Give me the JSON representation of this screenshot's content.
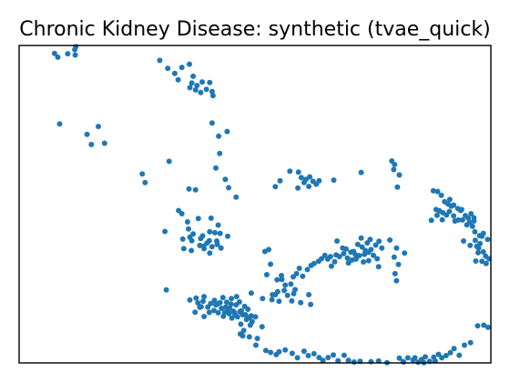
{
  "chart_data": {
    "type": "scatter",
    "title": "Chronic Kidney Disease: synthetic (tvae_quick)",
    "xlabel": "",
    "ylabel": "",
    "xlim": [
      0,
      100
    ],
    "ylim": [
      0,
      100
    ],
    "grid": false,
    "axis_ticks": false,
    "marker_color": "#1f77b4",
    "series": [
      {
        "points": [
          [
            7.5,
            97.5
          ],
          [
            8.2,
            96.3
          ],
          [
            10.3,
            97.4
          ],
          [
            11.8,
            98.7
          ],
          [
            12.0,
            99.6
          ],
          [
            11.9,
            97.0
          ],
          [
            29.8,
            95.3
          ],
          [
            31.5,
            92.8
          ],
          [
            33.0,
            91.2
          ],
          [
            33.7,
            89.2
          ],
          [
            34.5,
            93.1
          ],
          [
            36.1,
            94.1
          ],
          [
            36.9,
            90.3
          ],
          [
            36.6,
            88.2
          ],
          [
            37.7,
            87.4
          ],
          [
            38.8,
            88.5
          ],
          [
            37.4,
            86.0
          ],
          [
            38.5,
            85.2
          ],
          [
            39.7,
            86.2
          ],
          [
            40.9,
            85.5
          ],
          [
            40.4,
            88.3
          ],
          [
            41.1,
            84.2
          ],
          [
            36.2,
            86.7
          ],
          [
            8.6,
            75.3
          ],
          [
            14.4,
            72.0
          ],
          [
            15.3,
            68.8
          ],
          [
            16.8,
            74.5
          ],
          [
            18.1,
            69.2
          ],
          [
            40.9,
            75.6
          ],
          [
            42.3,
            71.4
          ],
          [
            44.1,
            72.9
          ],
          [
            42.5,
            66.0
          ],
          [
            41.7,
            61.4
          ],
          [
            43.7,
            57.8
          ],
          [
            44.4,
            55.2
          ],
          [
            46.0,
            52.2
          ],
          [
            26.1,
            59.5
          ],
          [
            26.7,
            56.8
          ],
          [
            31.8,
            63.5
          ],
          [
            36.0,
            54.8
          ],
          [
            37.4,
            54.5
          ],
          [
            33.8,
            48.0
          ],
          [
            34.5,
            47.0
          ],
          [
            35.7,
            44.4
          ],
          [
            35.9,
            42.2
          ],
          [
            36.6,
            38.5
          ],
          [
            38.3,
            37.0
          ],
          [
            36.2,
            39.6
          ],
          [
            36.9,
            40.6
          ],
          [
            39.2,
            36.0
          ],
          [
            40.3,
            38.5
          ],
          [
            38.0,
            45.5
          ],
          [
            39.1,
            36.8
          ],
          [
            39.8,
            37.7
          ],
          [
            34.7,
            39.0
          ],
          [
            40.9,
            36.6
          ],
          [
            41.9,
            38.4
          ],
          [
            40.7,
            45.6
          ],
          [
            42.0,
            37.3
          ],
          [
            42.8,
            36.2
          ],
          [
            34.9,
            36.0
          ],
          [
            38.5,
            39.2
          ],
          [
            36.5,
            35.4
          ],
          [
            40.4,
            34.6
          ],
          [
            31.2,
            23.0
          ],
          [
            54.3,
            55.5
          ],
          [
            55.3,
            57.4
          ],
          [
            57.4,
            60.4
          ],
          [
            59.2,
            60.1
          ],
          [
            59.8,
            58.4
          ],
          [
            60.8,
            57.8
          ],
          [
            61.6,
            58.6
          ],
          [
            62.3,
            57.2
          ],
          [
            63.6,
            57.4
          ],
          [
            63.0,
            56.3
          ],
          [
            61.4,
            55.6
          ],
          [
            60.4,
            56.8
          ],
          [
            59.1,
            55.1
          ],
          [
            66.7,
            57.6
          ],
          [
            72.5,
            60.0
          ],
          [
            79.6,
            62.5
          ],
          [
            52.1,
            35.1
          ],
          [
            53.3,
            31.1
          ],
          [
            52.9,
            35.7
          ],
          [
            55.6,
            27.5
          ],
          [
            56.4,
            24.5
          ],
          [
            58.1,
            27.1
          ],
          [
            58.8,
            28.1
          ],
          [
            57.6,
            24.8
          ],
          [
            58.5,
            23.1
          ],
          [
            60.1,
            27.3
          ],
          [
            59.4,
            29.8
          ],
          [
            61.1,
            29.4
          ],
          [
            61.9,
            30.7
          ],
          [
            62.5,
            31.3
          ],
          [
            63.5,
            32.0
          ],
          [
            64.1,
            32.8
          ],
          [
            64.8,
            33.9
          ],
          [
            65.4,
            32.7
          ],
          [
            66.2,
            30.5
          ],
          [
            66.9,
            31.9
          ],
          [
            66.0,
            33.5
          ],
          [
            67.2,
            34.0
          ],
          [
            67.9,
            33.5
          ],
          [
            68.8,
            34.4
          ],
          [
            69.6,
            33.0
          ],
          [
            70.3,
            34.9
          ],
          [
            69.3,
            35.9
          ],
          [
            70.9,
            35.1
          ],
          [
            71.4,
            32.7
          ],
          [
            72.1,
            33.8
          ],
          [
            73.2,
            34.2
          ],
          [
            74.1,
            32.2
          ],
          [
            72.7,
            36.5
          ],
          [
            74.6,
            35.7
          ],
          [
            73.8,
            37.8
          ],
          [
            71.8,
            37.3
          ],
          [
            75.6,
            37.1
          ],
          [
            76.3,
            38.3
          ],
          [
            76.9,
            36.2
          ],
          [
            75.1,
            33.9
          ],
          [
            74.4,
            38.9
          ],
          [
            70.6,
            32.4
          ],
          [
            73.0,
            31.8
          ],
          [
            76.2,
            30.3
          ],
          [
            74.1,
            34.9
          ],
          [
            68.6,
            36.2
          ],
          [
            67.4,
            38.4
          ],
          [
            72.5,
            39.3
          ],
          [
            73.4,
            35.4
          ],
          [
            71.3,
            34.1
          ],
          [
            69.8,
            31.5
          ],
          [
            75.9,
            32.8
          ],
          [
            59.7,
            19.0
          ],
          [
            61.4,
            21.5
          ],
          [
            56.9,
            21.3
          ],
          [
            52.5,
            27.8
          ],
          [
            54.3,
            21.5
          ],
          [
            49.2,
            22.0
          ],
          [
            53.6,
            19.9
          ],
          [
            58.2,
            21.8
          ],
          [
            55.1,
            19.4
          ],
          [
            57.8,
            19.5
          ],
          [
            78.6,
            38.7
          ],
          [
            79.5,
            33.3
          ],
          [
            79.7,
            28.1
          ],
          [
            80.0,
            36.2
          ],
          [
            30.9,
            41.4
          ],
          [
            38.9,
            40.0
          ],
          [
            42.2,
            43.4
          ],
          [
            40.4,
            41.3
          ],
          [
            41.5,
            41.0
          ],
          [
            42.6,
            40.8
          ],
          [
            44.2,
            39.9
          ],
          [
            36.2,
            19.8
          ],
          [
            37.5,
            20.4
          ],
          [
            37.9,
            18.9
          ],
          [
            38.3,
            17.5
          ],
          [
            39.0,
            19.4
          ],
          [
            40.0,
            17.6
          ],
          [
            40.6,
            18.7
          ],
          [
            41.4,
            19.7
          ],
          [
            39.2,
            20.9
          ],
          [
            41.7,
            18.3
          ],
          [
            42.6,
            19.0
          ],
          [
            42.9,
            17.2
          ],
          [
            43.8,
            17.6
          ],
          [
            44.3,
            16.8
          ],
          [
            44.9,
            18.5
          ],
          [
            45.4,
            16.3
          ],
          [
            46.0,
            18.3
          ],
          [
            46.8,
            16.1
          ],
          [
            47.4,
            15.2
          ],
          [
            48.5,
            16.9
          ],
          [
            49.2,
            14.8
          ],
          [
            45.0,
            20.3
          ],
          [
            43.2,
            20.6
          ],
          [
            44.0,
            19.1
          ],
          [
            45.6,
            15.9
          ],
          [
            46.7,
            19.2
          ],
          [
            47.8,
            17.8
          ],
          [
            48.8,
            14.2
          ],
          [
            49.4,
            13.0
          ],
          [
            50.1,
            14.5
          ],
          [
            49.0,
            11.9
          ],
          [
            47.0,
            12.2
          ],
          [
            48.2,
            13.7
          ],
          [
            46.3,
            14.5
          ],
          [
            45.1,
            14.1
          ],
          [
            43.3,
            14.7
          ],
          [
            44.5,
            15.5
          ],
          [
            42.2,
            15.8
          ],
          [
            41.3,
            16.5
          ],
          [
            40.3,
            15.9
          ],
          [
            39.2,
            14.6
          ],
          [
            38.6,
            17.7
          ],
          [
            37.3,
            16.0
          ],
          [
            46.1,
            20.9
          ],
          [
            47.6,
            10.2
          ],
          [
            48.8,
            8.2
          ],
          [
            50.5,
            7.7
          ],
          [
            47.4,
            8.5
          ],
          [
            46.9,
            9.1
          ],
          [
            51.5,
            11.4
          ],
          [
            42.1,
            18.6
          ],
          [
            44.6,
            17.3
          ],
          [
            45.8,
            15.1
          ],
          [
            47.1,
            16.4
          ],
          [
            48.0,
            15.2
          ],
          [
            43.6,
            15.9
          ],
          [
            50.2,
            5.6
          ],
          [
            52.3,
            3.9
          ],
          [
            53.3,
            3.3
          ],
          [
            54.5,
            2.6
          ],
          [
            53.7,
            21.5
          ],
          [
            54.8,
            22.4
          ],
          [
            56.2,
            22.8
          ],
          [
            51.6,
            20.3
          ],
          [
            54.7,
            26.2
          ],
          [
            55.7,
            26.3
          ],
          [
            61.8,
            18.4
          ],
          [
            55.1,
            3.5
          ],
          [
            56.4,
            4.1
          ],
          [
            57.9,
            3.0
          ],
          [
            59.0,
            1.6
          ],
          [
            60.4,
            3.7
          ],
          [
            61.3,
            2.3
          ],
          [
            62.5,
            2.9
          ],
          [
            63.6,
            1.7
          ],
          [
            64.4,
            0.8
          ],
          [
            65.5,
            1.7
          ],
          [
            66.6,
            2.5
          ],
          [
            67.6,
            0.7
          ],
          [
            68.9,
            2.4
          ],
          [
            69.8,
            0.8
          ],
          [
            71.0,
            0.3
          ],
          [
            72.3,
            0.5
          ],
          [
            74.6,
            0.4
          ],
          [
            76.2,
            0.6
          ],
          [
            78.0,
            0.1
          ],
          [
            80.6,
            1.5
          ],
          [
            81.5,
            0.3
          ],
          [
            82.4,
            1.6
          ],
          [
            83.5,
            0.9
          ],
          [
            84.6,
            0.2
          ],
          [
            85.3,
            1.1
          ],
          [
            86.1,
            1.9
          ],
          [
            87.0,
            0.5
          ],
          [
            87.9,
            1.8
          ],
          [
            88.9,
            2.7
          ],
          [
            89.6,
            1.6
          ],
          [
            90.5,
            2.3
          ],
          [
            91.4,
            3.2
          ],
          [
            92.2,
            4.5
          ],
          [
            93.3,
            2.4
          ],
          [
            94.4,
            5.6
          ],
          [
            95.7,
            6.4
          ],
          [
            97.2,
            11.7
          ],
          [
            98.5,
            11.9
          ],
          [
            99.4,
            11.2
          ],
          [
            81.4,
            0.4
          ],
          [
            83.9,
            1.6
          ],
          [
            85.8,
            0.1
          ],
          [
            88.2,
            0.6
          ],
          [
            87.8,
            54.2
          ],
          [
            88.7,
            54.0
          ],
          [
            89.5,
            52.8
          ],
          [
            90.2,
            50.8
          ],
          [
            91.3,
            51.5
          ],
          [
            92.1,
            49.7
          ],
          [
            93.0,
            48.6
          ],
          [
            93.8,
            48.3
          ],
          [
            94.6,
            46.4
          ],
          [
            95.2,
            45.6
          ],
          [
            96.4,
            45.7
          ],
          [
            88.4,
            48.3
          ],
          [
            89.1,
            47.9
          ],
          [
            89.8,
            47.3
          ],
          [
            90.6,
            46.6
          ],
          [
            91.2,
            47.7
          ],
          [
            92.1,
            46.3
          ],
          [
            93.1,
            45.0
          ],
          [
            94.0,
            45.0
          ],
          [
            94.9,
            43.5
          ],
          [
            95.5,
            44.3
          ],
          [
            96.1,
            43.0
          ],
          [
            96.6,
            41.3
          ],
          [
            97.6,
            40.1
          ],
          [
            98.4,
            40.8
          ],
          [
            99.3,
            38.9
          ],
          [
            96.7,
            38.6
          ],
          [
            97.0,
            36.7
          ],
          [
            97.3,
            34.7
          ],
          [
            98.4,
            35.0
          ],
          [
            98.9,
            33.6
          ],
          [
            99.6,
            32.8
          ],
          [
            98.1,
            32.0
          ],
          [
            96.8,
            32.1
          ],
          [
            99.0,
            31.3
          ],
          [
            96.4,
            44.7
          ],
          [
            97.7,
            37.6
          ],
          [
            90.9,
            50.1
          ],
          [
            88.6,
            46.5
          ],
          [
            89.7,
            45.1
          ],
          [
            92.4,
            44.7
          ],
          [
            91.6,
            49.4
          ],
          [
            93.6,
            48.0
          ],
          [
            95.8,
            47.0
          ],
          [
            98.1,
            39.9
          ],
          [
            97.4,
            36.2
          ],
          [
            95.6,
            37.0
          ],
          [
            94.2,
            38.4
          ],
          [
            87.4,
            44.9
          ],
          [
            79.0,
            63.6
          ],
          [
            79.4,
            60.9
          ],
          [
            80.6,
            59.2
          ],
          [
            80.2,
            55.4
          ],
          [
            80.4,
            31.0
          ],
          [
            81.7,
            34.6
          ],
          [
            80.0,
            25.9
          ]
        ]
      }
    ]
  }
}
